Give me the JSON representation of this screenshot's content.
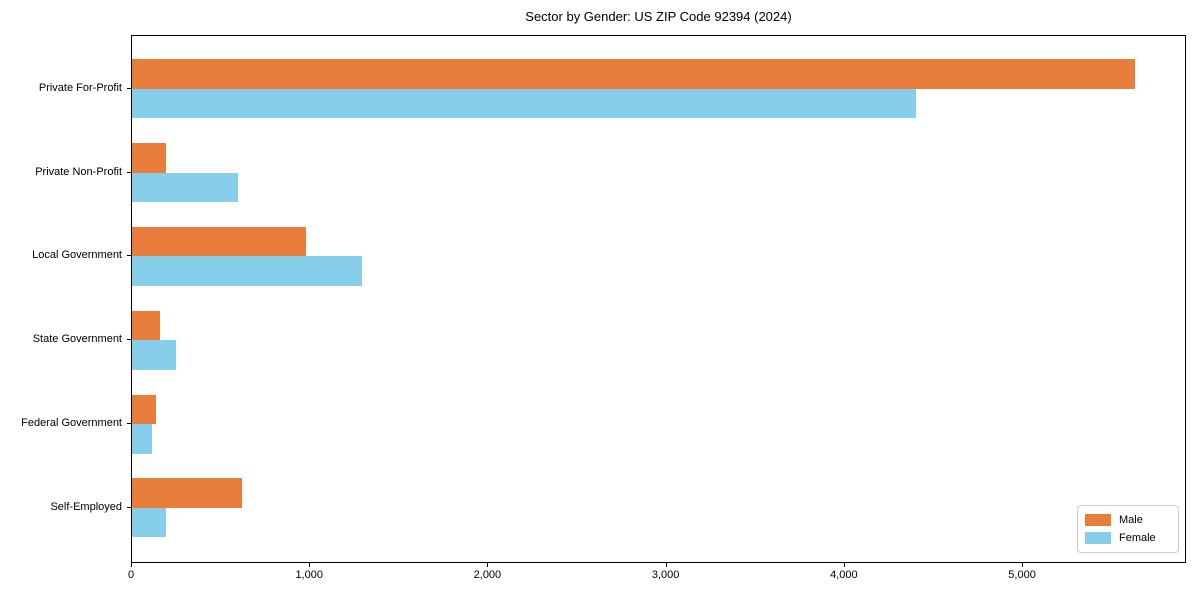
{
  "title": "Sector by Gender: US ZIP Code 92394 (2024)",
  "chart_data": {
    "type": "bar",
    "orientation": "horizontal",
    "title": "Sector by Gender: US ZIP Code 92394 (2024)",
    "categories": [
      "Private For-Profit",
      "Private Non-Profit",
      "Local Government",
      "State Government",
      "Federal Government",
      "Self-Employed"
    ],
    "series": [
      {
        "name": "Male",
        "color": "#e87d3c",
        "values": [
          5640,
          190,
          980,
          160,
          135,
          620
        ]
      },
      {
        "name": "Female",
        "color": "#87ceeb",
        "values": [
          4410,
          595,
          1295,
          250,
          110,
          190
        ]
      }
    ],
    "xlabel": "",
    "ylabel": "",
    "xlim": [
      0,
      5920
    ],
    "x_ticks": [
      0,
      1000,
      2000,
      3000,
      4000,
      5000
    ],
    "x_tick_labels": [
      "0",
      "1,000",
      "2,000",
      "3,000",
      "4,000",
      "5,000"
    ],
    "grid": false,
    "legend": {
      "position": "lower right",
      "entries": [
        "Male",
        "Female"
      ]
    }
  },
  "colors": {
    "male": "#e87d3c",
    "female": "#87ceeb",
    "axis": "#000000",
    "background": "#ffffff",
    "legend_border": "#cccccc"
  }
}
